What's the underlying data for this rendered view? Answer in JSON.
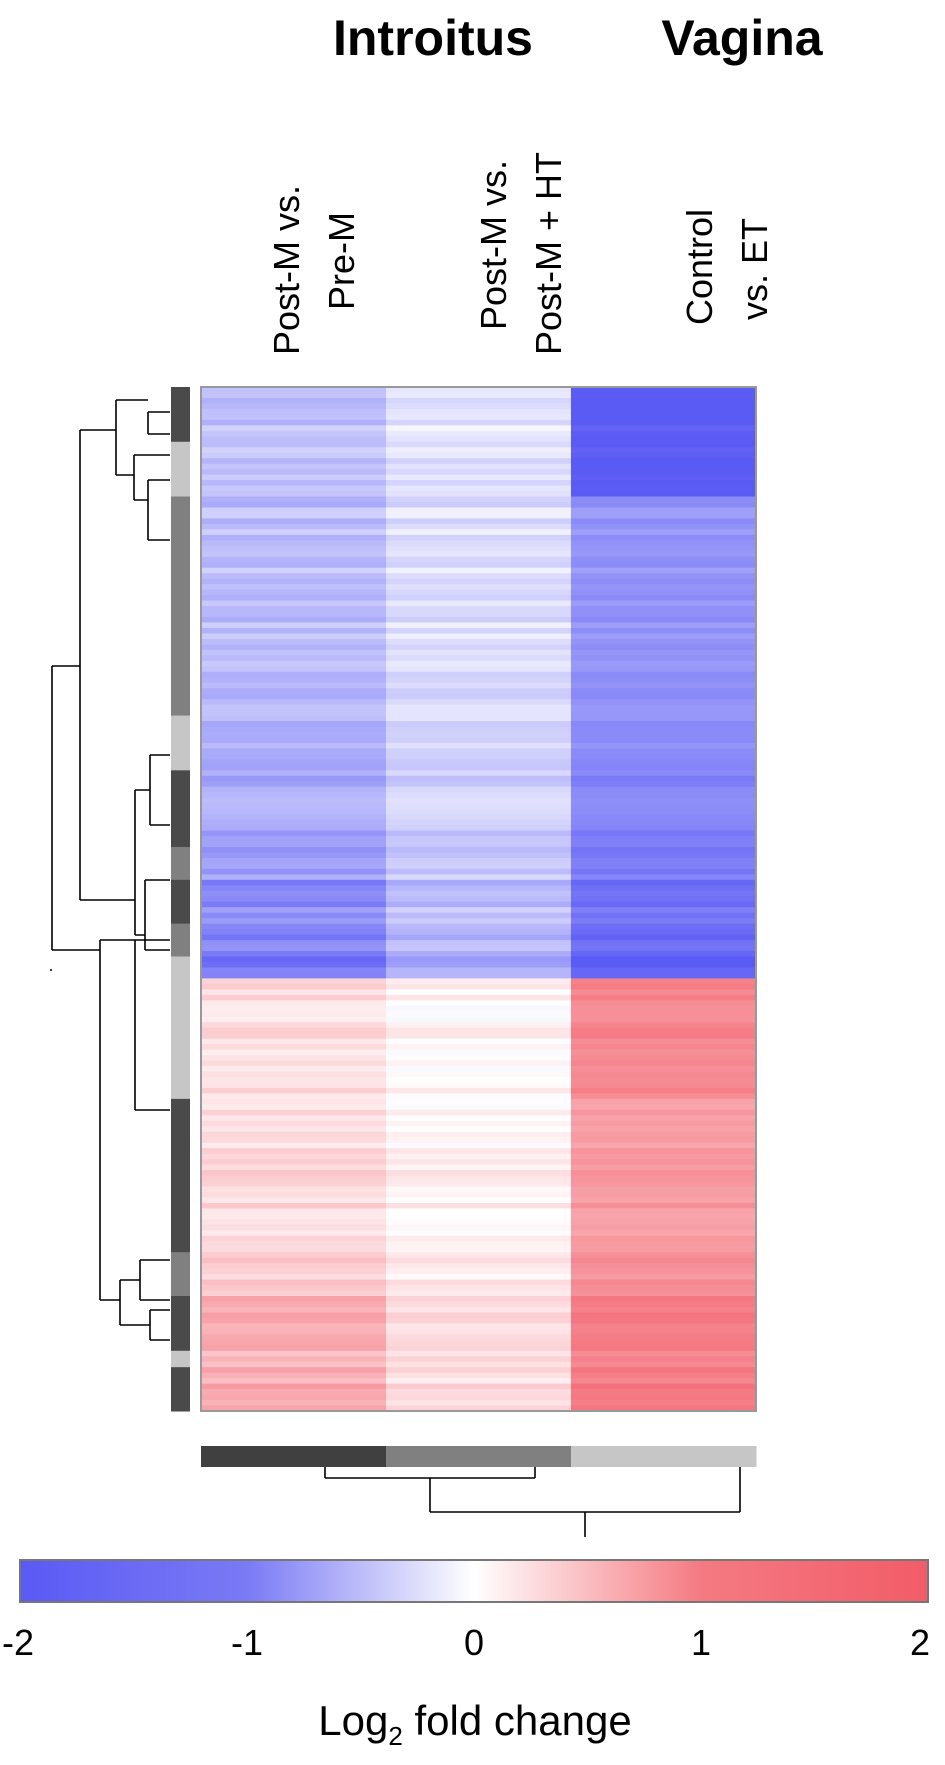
{
  "chart_data": {
    "type": "heatmap",
    "group_labels": [
      "Introitus",
      "Vagina"
    ],
    "columns": [
      {
        "line1": "Post-M vs.",
        "line2": "Pre-M"
      },
      {
        "line1": "Post-M vs.",
        "line2": "Post-M + HT"
      },
      {
        "line1": "Control",
        "line2": "vs. ET"
      }
    ],
    "colorbar": {
      "min": -2,
      "max": 2,
      "ticks": [
        "-2",
        "-1",
        "0",
        "1",
        "2"
      ],
      "title_main": "Log",
      "title_sub": "2",
      "title_rest": " fold change"
    },
    "colors": {
      "negative": "#5a5af5",
      "neutral": "#ffffff",
      "positive": "#f25c68"
    },
    "row_clusters": [
      {
        "rows": 10,
        "shade": "#4a4a4a",
        "values": [
          -0.75,
          -0.3,
          -2.0
        ]
      },
      {
        "rows": 10,
        "shade": "#c6c6c6",
        "values": [
          -0.7,
          -0.35,
          -2.0
        ]
      },
      {
        "rows": 40,
        "shade": "#808080",
        "values": [
          -0.8,
          -0.4,
          -1.3
        ]
      },
      {
        "rows": 10,
        "shade": "#c6c6c6",
        "values": [
          -1.0,
          -0.55,
          -1.4
        ]
      },
      {
        "rows": 14,
        "shade": "#4a4a4a",
        "values": [
          -1.05,
          -0.6,
          -1.5
        ]
      },
      {
        "rows": 6,
        "shade": "#808080",
        "values": [
          -1.2,
          -0.7,
          -1.6
        ]
      },
      {
        "rows": 8,
        "shade": "#4a4a4a",
        "values": [
          -1.4,
          -0.8,
          -1.7
        ]
      },
      {
        "rows": 6,
        "shade": "#808080",
        "values": [
          -1.5,
          -0.9,
          -1.8
        ]
      },
      {
        "rows": 4,
        "shade": "#c6c6c6",
        "values": [
          -1.6,
          -1.0,
          -1.9
        ]
      },
      {
        "rows": 22,
        "shade": "#c6c6c6",
        "values": [
          0.45,
          0.15,
          1.5
        ]
      },
      {
        "rows": 28,
        "shade": "#4a4a4a",
        "values": [
          0.5,
          0.2,
          1.25
        ]
      },
      {
        "rows": 8,
        "shade": "#808080",
        "values": [
          0.6,
          0.25,
          1.35
        ]
      },
      {
        "rows": 10,
        "shade": "#4a4a4a",
        "values": [
          0.95,
          0.35,
          1.55
        ]
      },
      {
        "rows": 3,
        "shade": "#c6c6c6",
        "values": [
          0.7,
          0.3,
          1.4
        ]
      },
      {
        "rows": 8,
        "shade": "#4a4a4a",
        "values": [
          1.0,
          0.4,
          1.6
        ]
      }
    ],
    "column_shades": [
      "#404040",
      "#808080",
      "#c6c6c6"
    ]
  }
}
